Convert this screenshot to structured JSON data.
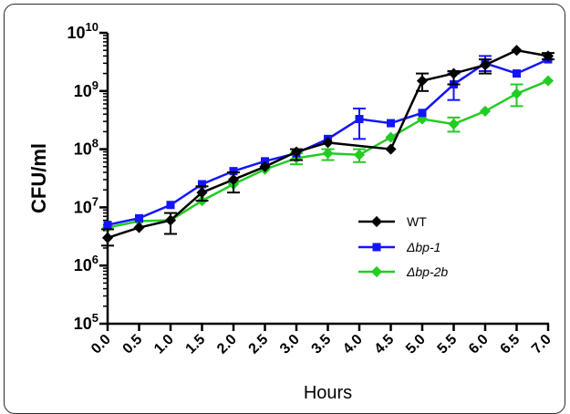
{
  "chart_data": {
    "type": "line",
    "xlabel": "Hours",
    "ylabel": "CFU/ml",
    "yscale": "log",
    "ylim": [
      100000,
      10000000000
    ],
    "yticks": [
      100000,
      1000000,
      10000000,
      100000000,
      1000000000,
      10000000000
    ],
    "ytick_mantissa": "10",
    "ytick_exponents": [
      "5",
      "6",
      "7",
      "8",
      "9",
      "10"
    ],
    "xlim": [
      0,
      7
    ],
    "x": [
      0.0,
      0.5,
      1.0,
      1.5,
      2.0,
      2.5,
      3.0,
      3.5,
      4.0,
      4.5,
      5.0,
      5.5,
      6.0,
      6.5,
      7.0
    ],
    "x_tick_labels": [
      "0.0",
      "0.5",
      "1.0",
      "1.5",
      "2.0",
      "2.5",
      "3.0",
      "3.5",
      "4.0",
      "4.5",
      "5.0",
      "5.5",
      "6.0",
      "6.5",
      "7.0"
    ],
    "legend_position": "lower-right",
    "grid": false,
    "series": [
      {
        "name": "WT",
        "color": "#000000",
        "marker": "diamond",
        "values": [
          3000000,
          4500000,
          6000000,
          18000000,
          30000000,
          50000000,
          90000000,
          130000000,
          null,
          100000000,
          1500000000,
          2000000000,
          2800000000,
          5000000000,
          4000000000
        ],
        "err_low": [
          2200000,
          null,
          3500000,
          13000000,
          18000000,
          null,
          65000000,
          null,
          null,
          null,
          1000000000,
          1300000000,
          2000000000,
          null,
          3500000000
        ],
        "err_high": [
          4200000,
          null,
          8000000,
          23000000,
          40000000,
          null,
          100000000,
          null,
          null,
          null,
          2000000000,
          2200000000,
          3500000000,
          null,
          4500000000
        ]
      },
      {
        "name": "Δbp-1",
        "color": "#1414ff",
        "marker": "square",
        "values": [
          5000000,
          6500000,
          11000000,
          25000000,
          42000000,
          62000000,
          85000000,
          150000000,
          330000000,
          280000000,
          420000000,
          1300000000,
          3000000000,
          2000000000,
          3500000000
        ],
        "err_low": [
          null,
          null,
          null,
          null,
          null,
          null,
          null,
          null,
          150000000,
          null,
          null,
          700000000,
          2200000000,
          null,
          null
        ],
        "err_high": [
          null,
          null,
          null,
          null,
          null,
          null,
          null,
          null,
          500000000,
          null,
          null,
          2000000000,
          4000000000,
          null,
          null
        ]
      },
      {
        "name": "Δbp-2b",
        "color": "#22cc22",
        "marker": "diamond",
        "values": [
          4500000,
          5800000,
          6000000,
          13000000,
          25000000,
          45000000,
          70000000,
          85000000,
          80000000,
          160000000,
          330000000,
          270000000,
          450000000,
          900000000,
          1500000000
        ],
        "err_low": [
          null,
          null,
          null,
          null,
          null,
          null,
          55000000,
          65000000,
          60000000,
          null,
          null,
          200000000,
          null,
          550000000,
          null
        ],
        "err_high": [
          null,
          null,
          null,
          null,
          null,
          null,
          85000000,
          100000000,
          100000000,
          null,
          null,
          350000000,
          null,
          1300000000,
          null
        ]
      }
    ]
  }
}
